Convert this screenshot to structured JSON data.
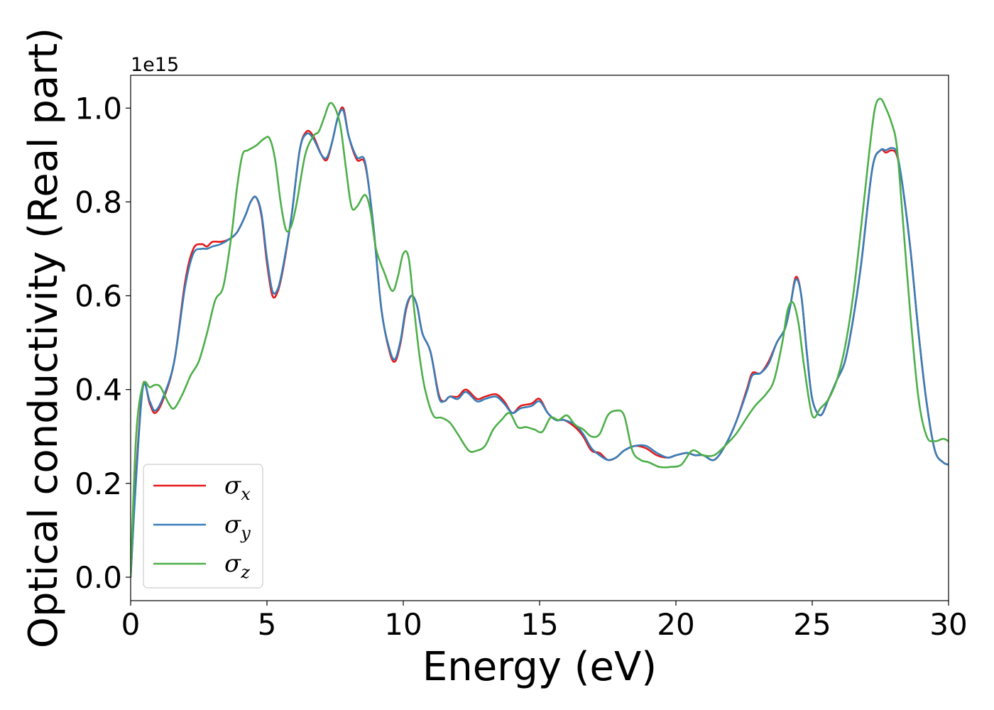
{
  "chart_data": {
    "type": "line",
    "title": "",
    "xlabel": "Energy (eV)",
    "ylabel": "Optical conductivity (Real part)",
    "y_offset_label": "1e15",
    "xlim": [
      0,
      30
    ],
    "ylim": [
      -0.05,
      1.07
    ],
    "xticks": [
      0,
      5,
      10,
      15,
      20,
      25,
      30
    ],
    "xtick_labels": [
      "0",
      "5",
      "10",
      "15",
      "20",
      "25",
      "30"
    ],
    "yticks": [
      0.0,
      0.2,
      0.4,
      0.6,
      0.8,
      1.0
    ],
    "ytick_labels": [
      "0.0",
      "0.2",
      "0.4",
      "0.6",
      "0.8",
      "1.0"
    ],
    "grid": false,
    "legend_position": "lower-left",
    "series": [
      {
        "name": "σx",
        "symbol": "σ",
        "subscript": "x",
        "color": "#e41a1c",
        "x": [
          0,
          0.2,
          0.45,
          0.7,
          0.9,
          1.2,
          1.6,
          2.0,
          2.3,
          2.6,
          2.8,
          3.0,
          3.3,
          3.6,
          3.9,
          4.2,
          4.4,
          4.6,
          4.8,
          5.0,
          5.2,
          5.4,
          5.6,
          5.9,
          6.2,
          6.45,
          6.7,
          7.0,
          7.2,
          7.4,
          7.6,
          7.8,
          8.0,
          8.3,
          8.6,
          8.9,
          9.2,
          9.5,
          9.7,
          9.9,
          10.1,
          10.3,
          10.5,
          10.7,
          11.0,
          11.3,
          11.5,
          11.7,
          12.0,
          12.3,
          12.7,
          13.0,
          13.4,
          13.7,
          14.0,
          14.3,
          14.7,
          15.0,
          15.3,
          15.6,
          15.9,
          16.3,
          16.6,
          16.9,
          17.2,
          17.5,
          17.8,
          18.1,
          18.5,
          18.9,
          19.3,
          19.7,
          20.0,
          20.4,
          20.7,
          21.0,
          21.4,
          21.8,
          22.2,
          22.6,
          22.8,
          23.1,
          23.4,
          23.7,
          24.0,
          24.2,
          24.4,
          24.6,
          24.8,
          25.0,
          25.3,
          25.6,
          25.9,
          26.2,
          26.5,
          26.8,
          27.2,
          27.5,
          27.7,
          27.9,
          28.1,
          28.3,
          28.6,
          28.9,
          29.2,
          29.5,
          29.8,
          30.0
        ],
        "y": [
          0.0,
          0.22,
          0.41,
          0.37,
          0.35,
          0.38,
          0.46,
          0.63,
          0.7,
          0.71,
          0.705,
          0.715,
          0.715,
          0.72,
          0.735,
          0.77,
          0.8,
          0.81,
          0.77,
          0.67,
          0.6,
          0.61,
          0.66,
          0.77,
          0.91,
          0.95,
          0.94,
          0.9,
          0.89,
          0.93,
          0.98,
          1.0,
          0.94,
          0.89,
          0.88,
          0.75,
          0.57,
          0.48,
          0.46,
          0.5,
          0.57,
          0.6,
          0.58,
          0.52,
          0.48,
          0.39,
          0.375,
          0.385,
          0.385,
          0.4,
          0.38,
          0.385,
          0.39,
          0.375,
          0.35,
          0.365,
          0.37,
          0.38,
          0.35,
          0.335,
          0.335,
          0.32,
          0.3,
          0.27,
          0.265,
          0.25,
          0.255,
          0.27,
          0.28,
          0.275,
          0.26,
          0.255,
          0.26,
          0.265,
          0.26,
          0.26,
          0.25,
          0.28,
          0.33,
          0.4,
          0.435,
          0.435,
          0.46,
          0.5,
          0.53,
          0.58,
          0.64,
          0.6,
          0.48,
          0.38,
          0.345,
          0.38,
          0.42,
          0.46,
          0.55,
          0.67,
          0.87,
          0.91,
          0.905,
          0.91,
          0.9,
          0.84,
          0.7,
          0.52,
          0.37,
          0.27,
          0.245,
          0.24
        ]
      },
      {
        "name": "σy",
        "symbol": "σ",
        "subscript": "y",
        "color": "#377eb8",
        "x": [
          0,
          0.2,
          0.45,
          0.7,
          0.9,
          1.2,
          1.6,
          2.0,
          2.3,
          2.6,
          2.8,
          3.0,
          3.3,
          3.6,
          3.9,
          4.2,
          4.4,
          4.6,
          4.8,
          5.0,
          5.2,
          5.4,
          5.6,
          5.9,
          6.2,
          6.45,
          6.7,
          7.0,
          7.2,
          7.4,
          7.6,
          7.8,
          8.0,
          8.3,
          8.6,
          8.9,
          9.2,
          9.5,
          9.7,
          9.9,
          10.1,
          10.3,
          10.5,
          10.7,
          11.0,
          11.3,
          11.5,
          11.7,
          12.0,
          12.3,
          12.7,
          13.0,
          13.4,
          13.7,
          14.0,
          14.3,
          14.7,
          15.0,
          15.3,
          15.6,
          15.9,
          16.3,
          16.6,
          16.9,
          17.2,
          17.5,
          17.8,
          18.1,
          18.5,
          18.9,
          19.3,
          19.7,
          20.0,
          20.4,
          20.7,
          21.0,
          21.4,
          21.8,
          22.2,
          22.6,
          22.8,
          23.1,
          23.4,
          23.7,
          24.0,
          24.2,
          24.4,
          24.6,
          24.8,
          25.0,
          25.3,
          25.6,
          25.9,
          26.2,
          26.5,
          26.8,
          27.2,
          27.5,
          27.7,
          27.9,
          28.1,
          28.3,
          28.6,
          28.9,
          29.2,
          29.5,
          29.8,
          30.0
        ],
        "y": [
          0.0,
          0.21,
          0.405,
          0.375,
          0.355,
          0.385,
          0.46,
          0.62,
          0.69,
          0.7,
          0.7,
          0.705,
          0.71,
          0.72,
          0.735,
          0.77,
          0.8,
          0.81,
          0.775,
          0.68,
          0.61,
          0.615,
          0.665,
          0.77,
          0.91,
          0.945,
          0.935,
          0.9,
          0.895,
          0.93,
          0.98,
          0.995,
          0.94,
          0.895,
          0.885,
          0.75,
          0.57,
          0.485,
          0.465,
          0.505,
          0.575,
          0.6,
          0.58,
          0.52,
          0.48,
          0.385,
          0.375,
          0.385,
          0.38,
          0.395,
          0.375,
          0.38,
          0.385,
          0.37,
          0.35,
          0.36,
          0.365,
          0.375,
          0.35,
          0.335,
          0.335,
          0.325,
          0.305,
          0.275,
          0.26,
          0.25,
          0.255,
          0.27,
          0.28,
          0.28,
          0.265,
          0.255,
          0.26,
          0.265,
          0.26,
          0.26,
          0.25,
          0.28,
          0.33,
          0.395,
          0.43,
          0.435,
          0.455,
          0.5,
          0.53,
          0.58,
          0.635,
          0.6,
          0.48,
          0.38,
          0.345,
          0.38,
          0.42,
          0.46,
          0.55,
          0.67,
          0.87,
          0.91,
          0.91,
          0.915,
          0.905,
          0.84,
          0.7,
          0.52,
          0.37,
          0.27,
          0.245,
          0.24
        ]
      },
      {
        "name": "σz",
        "symbol": "σ",
        "subscript": "z",
        "color": "#4daf4a",
        "x": [
          0,
          0.2,
          0.45,
          0.7,
          0.9,
          1.1,
          1.4,
          1.6,
          1.9,
          2.2,
          2.5,
          2.8,
          3.1,
          3.4,
          3.7,
          3.9,
          4.1,
          4.3,
          4.6,
          4.9,
          5.1,
          5.3,
          5.5,
          5.7,
          5.9,
          6.1,
          6.4,
          6.7,
          6.9,
          7.1,
          7.3,
          7.5,
          7.7,
          7.9,
          8.1,
          8.3,
          8.6,
          8.8,
          9.0,
          9.3,
          9.6,
          9.8,
          10.0,
          10.2,
          10.4,
          10.6,
          10.8,
          11.1,
          11.4,
          11.7,
          12.0,
          12.4,
          12.7,
          13.0,
          13.3,
          13.6,
          13.9,
          14.2,
          14.5,
          14.8,
          15.1,
          15.4,
          15.7,
          16.0,
          16.3,
          16.6,
          16.9,
          17.2,
          17.5,
          17.8,
          18.1,
          18.4,
          18.7,
          19.0,
          19.4,
          19.8,
          20.2,
          20.6,
          21.0,
          21.4,
          21.8,
          22.2,
          22.6,
          22.9,
          23.3,
          23.6,
          23.9,
          24.1,
          24.3,
          24.5,
          24.7,
          25.0,
          25.3,
          25.6,
          25.9,
          26.2,
          26.5,
          26.8,
          27.1,
          27.3,
          27.5,
          27.7,
          27.9,
          28.1,
          28.3,
          28.6,
          28.9,
          29.2,
          29.5,
          29.8,
          30.0
        ],
        "y": [
          0.0,
          0.3,
          0.41,
          0.405,
          0.41,
          0.405,
          0.37,
          0.36,
          0.39,
          0.43,
          0.46,
          0.52,
          0.59,
          0.62,
          0.73,
          0.83,
          0.9,
          0.91,
          0.92,
          0.935,
          0.935,
          0.89,
          0.8,
          0.74,
          0.75,
          0.8,
          0.9,
          0.94,
          0.95,
          0.98,
          1.01,
          1.0,
          0.96,
          0.87,
          0.79,
          0.79,
          0.815,
          0.78,
          0.7,
          0.65,
          0.61,
          0.64,
          0.69,
          0.68,
          0.57,
          0.47,
          0.4,
          0.345,
          0.34,
          0.33,
          0.305,
          0.27,
          0.27,
          0.28,
          0.315,
          0.335,
          0.35,
          0.32,
          0.32,
          0.315,
          0.31,
          0.34,
          0.335,
          0.345,
          0.325,
          0.315,
          0.3,
          0.305,
          0.345,
          0.355,
          0.345,
          0.27,
          0.25,
          0.245,
          0.235,
          0.235,
          0.24,
          0.27,
          0.26,
          0.26,
          0.28,
          0.305,
          0.34,
          0.365,
          0.39,
          0.42,
          0.5,
          0.57,
          0.585,
          0.54,
          0.45,
          0.345,
          0.36,
          0.38,
          0.42,
          0.49,
          0.6,
          0.75,
          0.91,
          1.0,
          1.02,
          1.0,
          0.97,
          0.92,
          0.78,
          0.56,
          0.38,
          0.3,
          0.29,
          0.295,
          0.29
        ]
      }
    ]
  }
}
